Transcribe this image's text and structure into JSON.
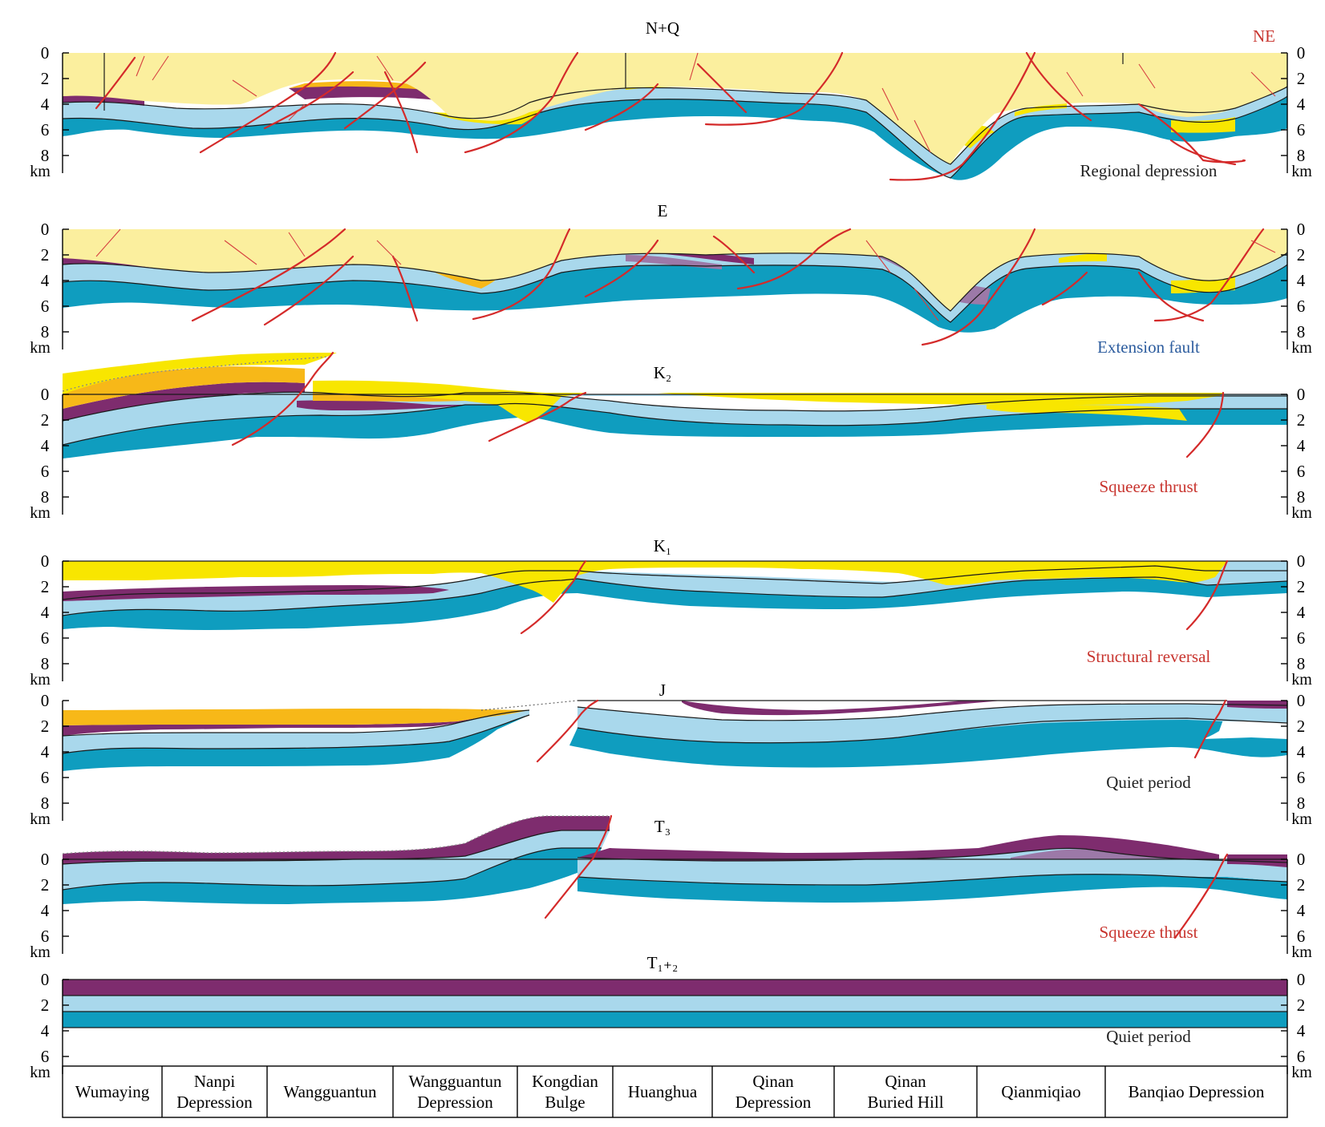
{
  "direction_label": "NE",
  "colors": {
    "layer_pale_yellow": "#fbef9e",
    "layer_yellow": "#f8e600",
    "layer_orange": "#f7b818",
    "layer_purple": "#7e2c6e",
    "layer_mauve": "#9c79a8",
    "layer_light_blue": "#a9d8ec",
    "layer_teal": "#0f9dbf",
    "fault_red": "#d42a2a",
    "caption_red": "#c8342e",
    "caption_blue": "#2c5c9e",
    "caption_black": "#222222"
  },
  "panels": [
    {
      "title": "N+Q",
      "caption": "Regional depression",
      "caption_color": "#222222",
      "left_ticks": [
        "0",
        "2",
        "4",
        "6",
        "8"
      ],
      "right_ticks": [
        "0",
        "2",
        "4",
        "6",
        "8"
      ],
      "unit": "km"
    },
    {
      "title": "E",
      "caption": "Extension fault",
      "caption_color": "#2c5c9e",
      "left_ticks": [
        "0",
        "2",
        "4",
        "6",
        "8"
      ],
      "right_ticks": [
        "0",
        "2",
        "4",
        "6",
        "8"
      ],
      "unit": "km"
    },
    {
      "title": "K₂",
      "caption": "Squeeze thrust",
      "caption_color": "#c8342e",
      "left_ticks": [
        "0",
        "2",
        "4",
        "6",
        "8"
      ],
      "right_ticks": [
        "0",
        "2",
        "4",
        "6",
        "8"
      ],
      "unit": "km"
    },
    {
      "title": "K₁",
      "caption": "Structural reversal",
      "caption_color": "#c8342e",
      "left_ticks": [
        "0",
        "2",
        "4",
        "6",
        "8"
      ],
      "right_ticks": [
        "0",
        "2",
        "4",
        "6",
        "8"
      ],
      "unit": "km"
    },
    {
      "title": "J",
      "caption": "Quiet period",
      "caption_color": "#222222",
      "left_ticks": [
        "0",
        "2",
        "4",
        "6",
        "8"
      ],
      "right_ticks": [
        "0",
        "2",
        "4",
        "6",
        "8"
      ],
      "unit": "km"
    },
    {
      "title": "T₃",
      "caption": "Squeeze thrust",
      "caption_color": "#c8342e",
      "left_ticks": [
        "0",
        "2",
        "4",
        "6"
      ],
      "right_ticks": [
        "0",
        "2",
        "4",
        "6"
      ],
      "unit": "km"
    },
    {
      "title": "T₁₊₂",
      "caption": "Quiet period",
      "caption_color": "#222222",
      "left_ticks": [
        "0",
        "2",
        "4",
        "6"
      ],
      "right_ticks": [
        "0",
        "2",
        "4",
        "6"
      ],
      "unit": "km"
    }
  ],
  "locations": [
    [
      "Wumaying"
    ],
    [
      "Nanpi",
      "Depression"
    ],
    [
      "Wangguantun"
    ],
    [
      "Wangguantun",
      "Depression"
    ],
    [
      "Kongdian",
      "Bulge"
    ],
    [
      "Huanghua"
    ],
    [
      "Qinan",
      "Depression"
    ],
    [
      "Qinan",
      "Buried Hill"
    ],
    [
      "Qianmiqiao"
    ],
    [
      "Banqiao Depression"
    ]
  ]
}
